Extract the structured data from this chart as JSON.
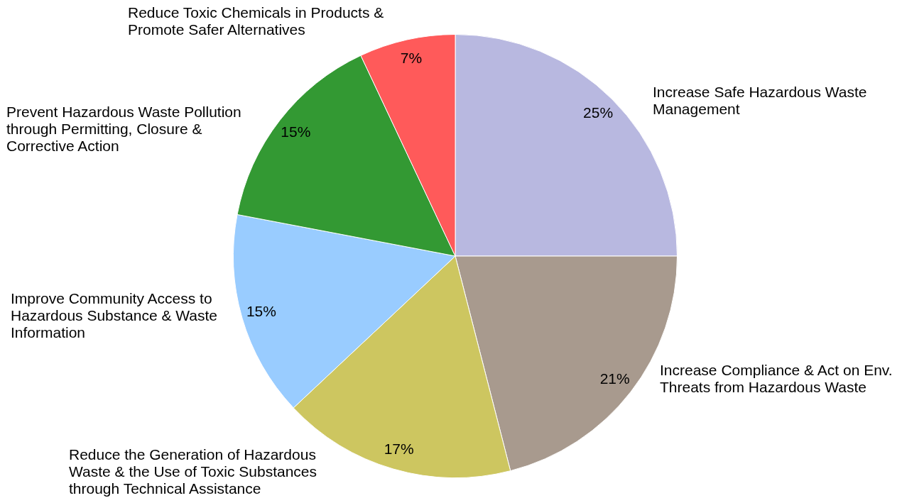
{
  "chart_data": {
    "type": "pie",
    "categories": [
      "Increase Safe Hazardous Waste Management",
      "Increase Compliance & Act on Env. Threats from Hazardous Waste",
      "Reduce the Generation of Hazardous Waste & the Use of Toxic Substances through Technical Assistance",
      "Improve Community Access to Hazardous Substance & Waste Information",
      "Prevent Hazardous Waste Pollution through Permitting, Closure & Corrective Action",
      "Reduce Toxic Chemicals in Products & Promote Safer Alternatives"
    ],
    "values": [
      25,
      21,
      17,
      15,
      15,
      7
    ],
    "colors": [
      "#b8b8e0",
      "#a89a8e",
      "#cdc660",
      "#99ccff",
      "#339933",
      "#ff5a5a"
    ],
    "value_labels": [
      "25%",
      "21%",
      "17%",
      "15%",
      "15%",
      "7%"
    ]
  }
}
